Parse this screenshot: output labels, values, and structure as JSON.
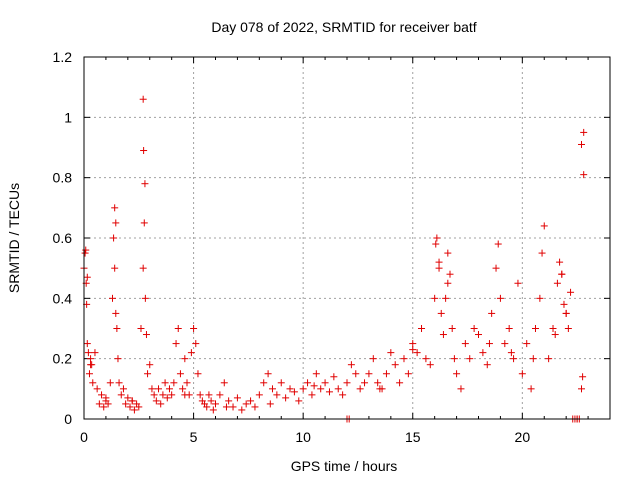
{
  "chart_data": {
    "type": "scatter",
    "title": "Day 078 of 2022, SRMTID for receiver batf",
    "xlabel": "GPS time / hours",
    "ylabel": "SRMTID / TECUs",
    "xlim": [
      0,
      24
    ],
    "ylim": [
      0,
      1.2
    ],
    "xticks": [
      0,
      5,
      10,
      15,
      20
    ],
    "xtick_labels": [
      "0",
      "5",
      "10",
      "15",
      "20"
    ],
    "yticks": [
      0,
      0.2,
      0.4,
      0.6,
      0.8,
      1.0,
      1.2
    ],
    "ytick_labels": [
      "0",
      "0.2",
      "0.4",
      "0.6",
      "0.8",
      "1",
      "1.2"
    ],
    "grid": true,
    "marker": "+",
    "series": [
      {
        "name": "SRMTID",
        "color": "#e00000",
        "x": [
          0.0,
          0.05,
          0.1,
          0.12,
          0.15,
          0.2,
          0.25,
          0.3,
          0.35,
          0.4,
          0.5,
          0.6,
          0.7,
          0.8,
          0.9,
          1.0,
          1.1,
          1.2,
          1.3,
          1.35,
          1.4,
          1.45,
          1.5,
          1.55,
          1.6,
          1.7,
          1.8,
          1.9,
          2.0,
          2.1,
          2.2,
          2.3,
          2.4,
          2.5,
          2.6,
          2.7,
          2.75,
          2.8,
          2.85,
          2.9,
          3.0,
          3.1,
          3.2,
          3.3,
          3.4,
          3.5,
          3.6,
          3.7,
          3.8,
          3.9,
          4.0,
          4.1,
          4.2,
          4.3,
          4.4,
          4.5,
          4.6,
          4.7,
          4.8,
          4.9,
          5.0,
          5.1,
          5.2,
          5.3,
          5.4,
          5.5,
          5.6,
          5.7,
          5.8,
          5.9,
          6.0,
          6.2,
          6.4,
          6.6,
          6.8,
          7.0,
          7.2,
          7.4,
          7.6,
          7.8,
          8.0,
          8.2,
          8.4,
          8.6,
          8.8,
          9.0,
          9.2,
          9.4,
          9.6,
          9.8,
          10.0,
          10.2,
          10.4,
          10.6,
          10.8,
          11.0,
          11.2,
          11.4,
          11.6,
          11.8,
          12.0,
          12.2,
          12.4,
          12.6,
          12.8,
          13.0,
          13.2,
          13.4,
          13.6,
          13.8,
          14.0,
          14.2,
          14.4,
          14.6,
          14.8,
          15.0,
          15.2,
          15.4,
          15.6,
          15.8,
          16.0,
          16.1,
          16.2,
          16.3,
          16.4,
          16.5,
          16.6,
          16.7,
          16.8,
          17.0,
          17.2,
          17.4,
          17.6,
          17.8,
          18.0,
          18.2,
          18.4,
          18.6,
          18.8,
          18.9,
          19.0,
          19.2,
          19.4,
          19.6,
          19.8,
          20.0,
          20.2,
          20.4,
          20.6,
          20.8,
          20.9,
          21.0,
          21.2,
          21.4,
          21.6,
          21.7,
          21.8,
          21.9,
          22.0,
          22.1,
          22.2,
          22.4,
          22.5,
          22.6,
          22.7,
          22.75,
          22.8,
          12.0,
          12.1,
          22.3,
          22.5,
          0.3,
          1.0,
          2.2,
          4.6,
          6.5,
          8.5,
          10.5,
          13.5,
          15.0,
          16.9,
          18.5,
          19.5,
          20.5,
          21.5,
          22.0,
          0.08,
          0.15,
          1.4,
          1.45,
          2.7,
          2.72,
          2.78,
          16.05,
          16.2,
          16.6,
          21.8,
          22.7,
          22.8
        ],
        "y": [
          0.5,
          0.55,
          0.45,
          0.38,
          0.25,
          0.22,
          0.15,
          0.2,
          0.18,
          0.12,
          0.22,
          0.1,
          0.05,
          0.08,
          0.04,
          0.07,
          0.05,
          0.12,
          0.4,
          0.6,
          0.7,
          0.35,
          0.3,
          0.2,
          0.12,
          0.08,
          0.1,
          0.05,
          0.07,
          0.04,
          0.06,
          0.03,
          0.05,
          0.04,
          0.3,
          0.5,
          0.65,
          0.4,
          0.28,
          0.15,
          0.18,
          0.1,
          0.08,
          0.06,
          0.1,
          0.05,
          0.08,
          0.12,
          0.07,
          0.1,
          0.08,
          0.12,
          0.25,
          0.3,
          0.15,
          0.1,
          0.2,
          0.12,
          0.08,
          0.22,
          0.3,
          0.25,
          0.15,
          0.08,
          0.06,
          0.05,
          0.04,
          0.08,
          0.06,
          0.03,
          0.05,
          0.08,
          0.12,
          0.06,
          0.04,
          0.07,
          0.03,
          0.05,
          0.06,
          0.04,
          0.08,
          0.12,
          0.15,
          0.1,
          0.08,
          0.12,
          0.07,
          0.1,
          0.09,
          0.06,
          0.1,
          0.12,
          0.08,
          0.15,
          0.1,
          0.12,
          0.09,
          0.14,
          0.1,
          0.08,
          0.12,
          0.18,
          0.15,
          0.1,
          0.12,
          0.15,
          0.2,
          0.12,
          0.1,
          0.15,
          0.22,
          0.18,
          0.12,
          0.2,
          0.15,
          0.25,
          0.22,
          0.3,
          0.2,
          0.18,
          0.4,
          0.6,
          0.5,
          0.35,
          0.28,
          0.4,
          0.55,
          0.48,
          0.3,
          0.15,
          0.1,
          0.25,
          0.2,
          0.3,
          0.28,
          0.22,
          0.18,
          0.35,
          0.5,
          0.58,
          0.4,
          0.25,
          0.3,
          0.2,
          0.45,
          0.15,
          0.25,
          0.1,
          0.3,
          0.4,
          0.55,
          0.64,
          0.2,
          0.3,
          0.45,
          0.52,
          0.48,
          0.38,
          0.35,
          0.3,
          0.42,
          0.0,
          0.0,
          0.0,
          0.1,
          0.14,
          0.95,
          0.0,
          0.0,
          0.0,
          0.0,
          0.18,
          0.06,
          0.06,
          0.08,
          0.04,
          0.05,
          0.11,
          0.1,
          0.23,
          0.2,
          0.25,
          0.22,
          0.2,
          0.28,
          0.35,
          0.56,
          0.47,
          0.5,
          0.65,
          1.06,
          0.89,
          0.78,
          0.58,
          0.52,
          0.45,
          0.48,
          0.91,
          0.81
        ]
      }
    ]
  }
}
